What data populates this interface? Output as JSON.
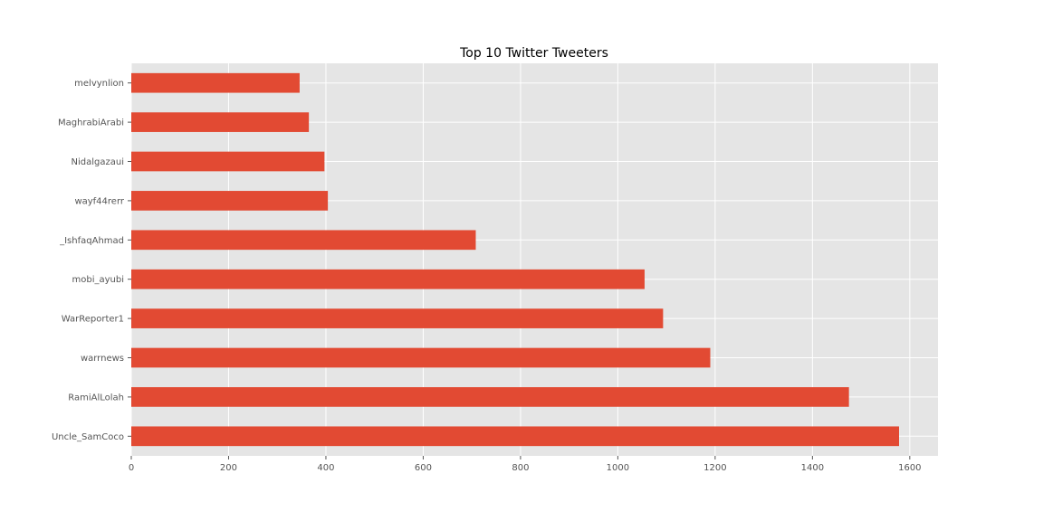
{
  "chart_data": {
    "type": "bar",
    "orientation": "horizontal",
    "title": "Top 10 Twitter Tweeters",
    "xlabel": "",
    "ylabel": "",
    "categories": [
      "Uncle_SamCoco",
      "RamiAlLolah",
      "warrnews",
      "WarReporter1",
      "mobi_ayubi",
      "_IshfaqAhmad",
      "wayf44rerr",
      "Nidalgazaui",
      "MaghrabiArabi",
      "melvynlion"
    ],
    "values": [
      1578,
      1475,
      1190,
      1093,
      1055,
      708,
      404,
      397,
      365,
      346
    ],
    "xlim": [
      0,
      1658
    ],
    "xticks": [
      0,
      200,
      400,
      600,
      800,
      1000,
      1200,
      1400,
      1600
    ],
    "grid": true,
    "style": "ggplot",
    "colors": {
      "bar": "#E24A33",
      "plot_background": "#E5E5E5",
      "grid": "#FFFFFF",
      "tick_label": "#555555"
    }
  }
}
